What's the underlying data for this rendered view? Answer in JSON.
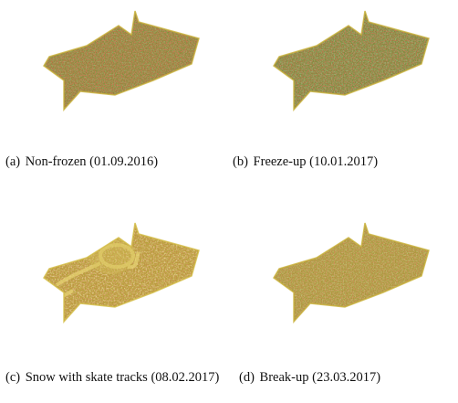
{
  "figure": {
    "panels": [
      {
        "label": "(a)",
        "caption": "Non-frozen (01.09.2016)",
        "tint": "#8a8a3a",
        "speckle": "#b02818",
        "highlight": "#4f7a2a",
        "tracks": false
      },
      {
        "label": "(b)",
        "caption": "Freeze-up (10.01.2017)",
        "tint": "#7f8a3c",
        "speckle": "#a82a18",
        "highlight": "#4b7d30",
        "tracks": false
      },
      {
        "label": "(c)",
        "caption": "Snow with skate tracks (08.02.2017)",
        "tint": "#b5a038",
        "speckle": "#a8401c",
        "highlight": "#d9c060",
        "tracks": true
      },
      {
        "label": "(d)",
        "caption": "Break-up (23.03.2017)",
        "tint": "#a89a3c",
        "speckle": "#b0401c",
        "highlight": "#8a8a30",
        "tracks": false
      }
    ]
  }
}
